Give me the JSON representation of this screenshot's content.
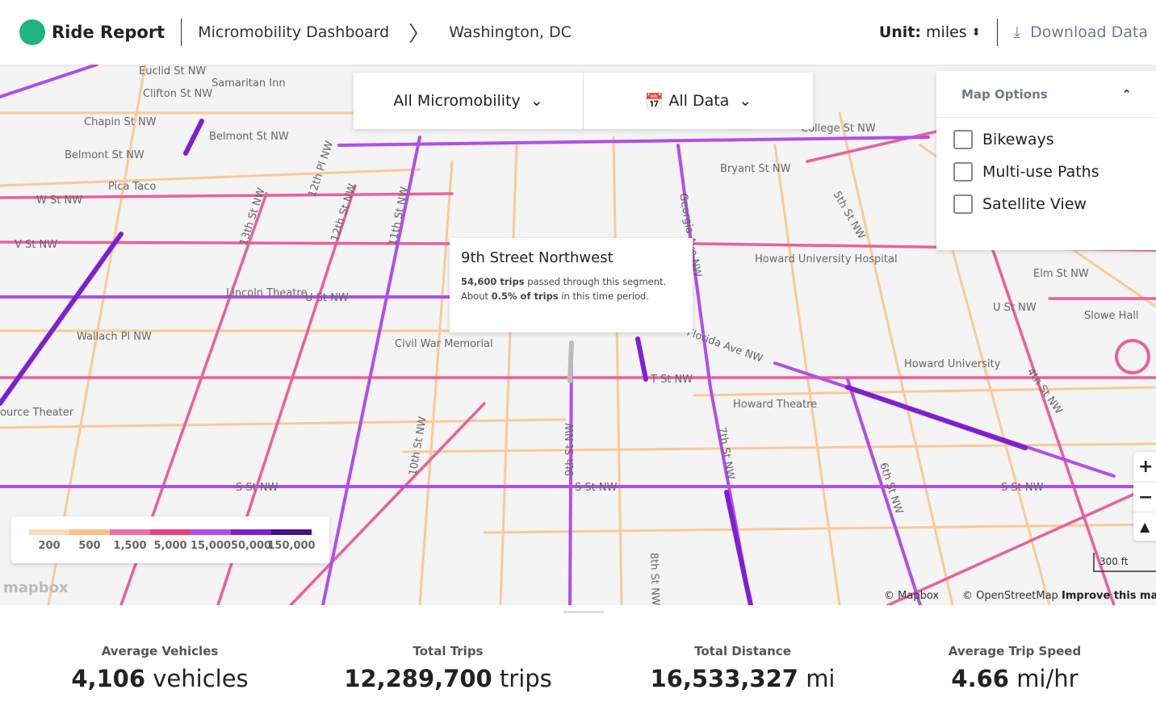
{
  "header": {
    "brand": "Ride Report",
    "breadcrumb": [
      "Micromobility Dashboard",
      "Washington, DC"
    ],
    "unit_label": "Unit:",
    "unit": "miles",
    "download": "Download Data"
  },
  "filters": {
    "mode": "All Micromobility",
    "date": "All Data"
  },
  "map_options": {
    "title": "Map Options",
    "options": [
      "Bikeways",
      "Multi-use Paths",
      "Satellite View"
    ]
  },
  "tooltip": {
    "title": "9th Street Northwest",
    "trips": "54,600 trips",
    "text_1": " passed through this segment. About ",
    "share": "0.5% of trips",
    "text_2": " in this time period."
  },
  "legend": [
    {
      "label": "200",
      "color": "#fcd9b8"
    },
    {
      "label": "500",
      "color": "#fbbf86"
    },
    {
      "label": "1,500",
      "color": "#ec6fa0"
    },
    {
      "label": "5,000",
      "color": "#e8407f"
    },
    {
      "label": "15,000",
      "color": "#b14ee8"
    },
    {
      "label": "50,000",
      "color": "#7e1fd1"
    },
    {
      "label": "150,000",
      "color": "#4b0f8c"
    }
  ],
  "map_labels": [
    "Euclid St NW",
    "Clifton St NW",
    "Samaritan Inn",
    "Chapin St NW",
    "Belmont St NW",
    "Belmont St NW",
    "Pica Taco",
    "W St NW",
    "V St NW",
    "13th St NW",
    "12th Pl NW",
    "12th St NW",
    "11th St NW",
    "Lincoln Theatre",
    "U St NW",
    "Wallach Pl NW",
    "Civil War Memorial",
    "T St NW",
    "Florida Ave NW",
    "Howard University Hospital",
    "Howard University",
    "Howard Theatre",
    "S St NW",
    "S St NW",
    "S St NW",
    "7th St NW",
    "8th St NW",
    "9th St NW",
    "10th St NW",
    "6th St NW",
    "5th St NW",
    "4th St NW",
    "Bryant St NW",
    "College St NW",
    "Elm St NW",
    "U St NW",
    "Slowe Hall",
    "ource Theater",
    "Georgia Ave NW"
  ],
  "map_attribution": {
    "logo": "mapbox",
    "mapbox": "© Mapbox",
    "osm": "© OpenStreetMap",
    "improve": "Improve this ma",
    "scale": "300 ft"
  },
  "stats": [
    {
      "label": "Average Vehicles",
      "value": "4,106",
      "unit": "vehicles"
    },
    {
      "label": "Total Trips",
      "value": "12,289,700",
      "unit": "trips"
    },
    {
      "label": "Total Distance",
      "value": "16,533,327",
      "unit": "mi"
    },
    {
      "label": "Average Trip Speed",
      "value": "4.66",
      "unit": "mi/hr"
    }
  ]
}
